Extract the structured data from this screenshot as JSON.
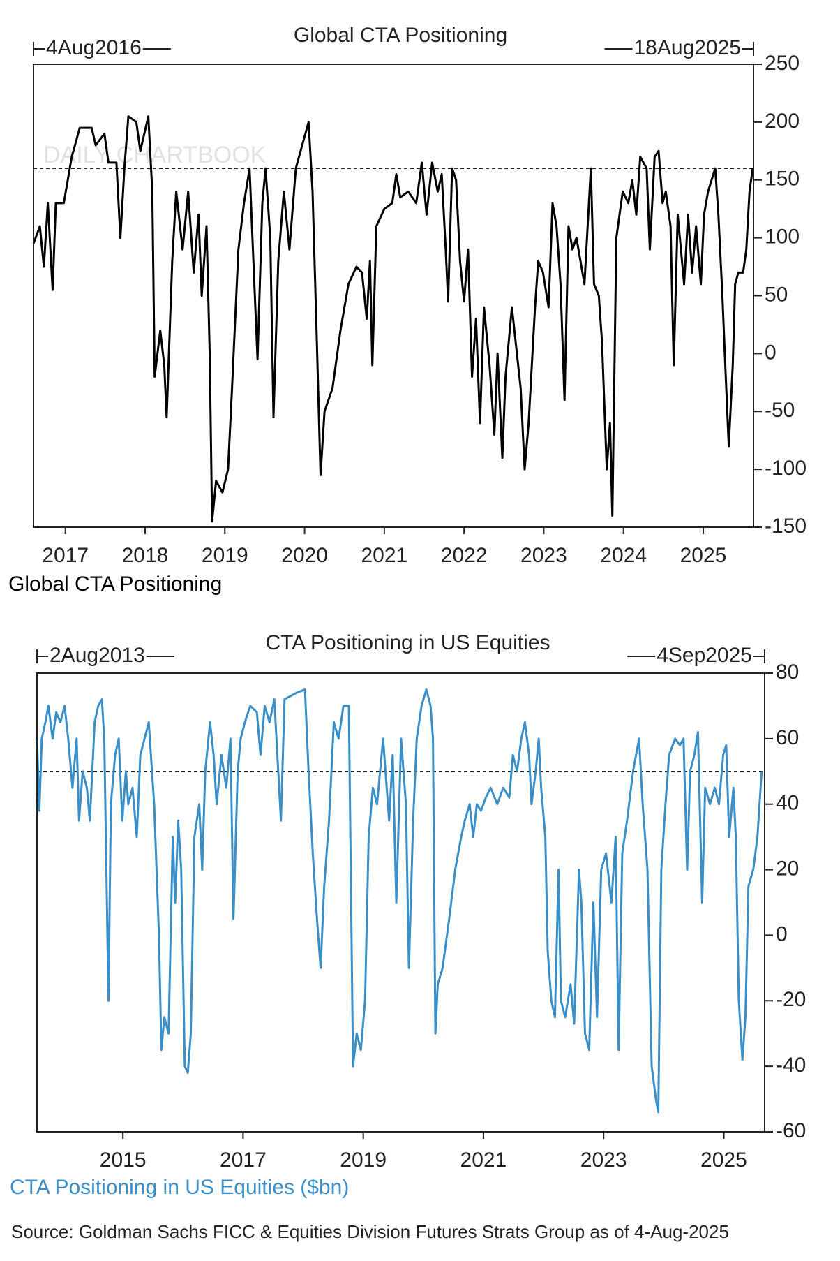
{
  "chart_data": [
    {
      "type": "line",
      "title": "Global CTA Positioning",
      "start_label": "4Aug2016",
      "end_label": "18Aug2025",
      "watermark": "DAILY CHARTBOOK",
      "xlim": [
        2016.6,
        2025.63
      ],
      "xticks": [
        2017,
        2018,
        2019,
        2020,
        2021,
        2022,
        2023,
        2024,
        2025
      ],
      "ylim": [
        -150,
        250
      ],
      "yticks": [
        -150,
        -100,
        -50,
        0,
        50,
        100,
        150,
        200,
        250
      ],
      "y_axis_side": "right",
      "reference_line": 160,
      "series": [
        {
          "name": "Global CTA Positioning",
          "color": "#000000",
          "x": [
            2016.6,
            2016.68,
            2016.73,
            2016.78,
            2016.84,
            2016.88,
            2016.98,
            2017.08,
            2017.18,
            2017.33,
            2017.38,
            2017.49,
            2017.54,
            2017.64,
            2017.69,
            2017.74,
            2017.79,
            2017.89,
            2017.94,
            2018.04,
            2018.09,
            2018.12,
            2018.19,
            2018.24,
            2018.27,
            2018.34,
            2018.39,
            2018.47,
            2018.54,
            2018.61,
            2018.67,
            2018.71,
            2018.77,
            2018.81,
            2018.84,
            2018.89,
            2018.97,
            2019.04,
            2019.09,
            2019.17,
            2019.24,
            2019.31,
            2019.37,
            2019.41,
            2019.47,
            2019.51,
            2019.57,
            2019.61,
            2019.67,
            2019.74,
            2019.81,
            2019.89,
            2019.97,
            2020.05,
            2020.1,
            2020.15,
            2020.2,
            2020.25,
            2020.35,
            2020.45,
            2020.55,
            2020.65,
            2020.72,
            2020.78,
            2020.82,
            2020.85,
            2020.9,
            2021.0,
            2021.1,
            2021.15,
            2021.2,
            2021.3,
            2021.4,
            2021.47,
            2021.53,
            2021.6,
            2021.67,
            2021.72,
            2021.77,
            2021.8,
            2021.85,
            2021.9,
            2021.95,
            2022.0,
            2022.05,
            2022.1,
            2022.15,
            2022.2,
            2022.25,
            2022.32,
            2022.38,
            2022.42,
            2022.48,
            2022.52,
            2022.6,
            2022.71,
            2022.76,
            2022.81,
            2022.89,
            2022.93,
            2022.99,
            2023.06,
            2023.11,
            2023.16,
            2023.21,
            2023.26,
            2023.31,
            2023.36,
            2023.41,
            2023.51,
            2023.59,
            2023.63,
            2023.69,
            2023.73,
            2023.79,
            2023.83,
            2023.86,
            2023.91,
            2023.99,
            2024.06,
            2024.11,
            2024.16,
            2024.21,
            2024.29,
            2024.33,
            2024.39,
            2024.44,
            2024.49,
            2024.53,
            2024.59,
            2024.63,
            2024.68,
            2024.76,
            2024.81,
            2024.86,
            2024.91,
            2024.97,
            2025.01,
            2025.06,
            2025.15,
            2025.19,
            2025.24,
            2025.27,
            2025.32,
            2025.37,
            2025.4,
            2025.44,
            2025.5,
            2025.54,
            2025.58,
            2025.62
          ],
          "values": [
            95,
            110,
            75,
            130,
            55,
            130,
            130,
            170,
            195,
            195,
            180,
            190,
            165,
            165,
            100,
            160,
            205,
            200,
            175,
            205,
            140,
            -20,
            20,
            -10,
            -55,
            80,
            140,
            90,
            140,
            70,
            120,
            50,
            110,
            0,
            -145,
            -110,
            -120,
            -100,
            -30,
            90,
            130,
            160,
            60,
            -5,
            130,
            160,
            100,
            -55,
            80,
            140,
            90,
            160,
            180,
            200,
            140,
            20,
            -105,
            -50,
            -30,
            20,
            60,
            75,
            70,
            30,
            80,
            -10,
            110,
            125,
            130,
            155,
            135,
            140,
            130,
            165,
            120,
            165,
            140,
            155,
            90,
            45,
            160,
            150,
            80,
            45,
            90,
            -20,
            30,
            -60,
            40,
            -10,
            -70,
            0,
            -90,
            -20,
            40,
            -30,
            -100,
            -60,
            40,
            80,
            70,
            40,
            130,
            110,
            60,
            -40,
            110,
            90,
            100,
            60,
            160,
            60,
            50,
            10,
            -100,
            -60,
            -140,
            100,
            140,
            130,
            150,
            120,
            170,
            160,
            90,
            170,
            175,
            130,
            140,
            110,
            -10,
            120,
            60,
            120,
            70,
            110,
            60,
            120,
            140,
            160,
            120,
            50,
            0,
            -80,
            -10,
            60,
            70,
            70,
            90,
            140,
            160
          ]
        }
      ]
    },
    {
      "type": "line",
      "title": "CTA Positioning in US Equities",
      "start_label": "2Aug2013",
      "end_label": "4Sep2025",
      "xlim": [
        2013.57,
        2025.68
      ],
      "xticks": [
        2015,
        2017,
        2019,
        2021,
        2023,
        2025
      ],
      "ylim": [
        -60,
        80
      ],
      "yticks": [
        -60,
        -40,
        -20,
        0,
        20,
        40,
        60,
        80
      ],
      "y_axis_side": "right",
      "reference_line": 50,
      "series": [
        {
          "name": "CTA Positioning in US Equities ($bn)",
          "color": "#3a8fc8",
          "x": [
            2013.57,
            2013.61,
            2013.65,
            2013.71,
            2013.76,
            2013.83,
            2013.89,
            2013.96,
            2014.03,
            2014.09,
            2014.16,
            2014.23,
            2014.27,
            2014.33,
            2014.4,
            2014.45,
            2014.53,
            2014.59,
            2014.65,
            2014.69,
            2014.76,
            2014.8,
            2014.87,
            2014.93,
            2014.99,
            2015.05,
            2015.09,
            2015.16,
            2015.23,
            2015.29,
            2015.36,
            2015.43,
            2015.52,
            2015.6,
            2015.64,
            2015.69,
            2015.76,
            2015.83,
            2015.87,
            2015.92,
            2015.97,
            2016.03,
            2016.08,
            2016.13,
            2016.19,
            2016.27,
            2016.32,
            2016.37,
            2016.45,
            2016.51,
            2016.56,
            2016.64,
            2016.72,
            2016.79,
            2016.84,
            2016.91,
            2016.96,
            2017.03,
            2017.12,
            2017.23,
            2017.29,
            2017.36,
            2017.44,
            2017.52,
            2017.63,
            2017.69,
            2017.79,
            2017.89,
            2018.03,
            2018.09,
            2018.16,
            2018.23,
            2018.29,
            2018.35,
            2018.43,
            2018.51,
            2018.59,
            2018.67,
            2018.76,
            2018.83,
            2018.89,
            2018.96,
            2019.03,
            2019.09,
            2019.16,
            2019.23,
            2019.33,
            2019.43,
            2019.49,
            2019.55,
            2019.63,
            2019.71,
            2019.76,
            2019.83,
            2019.89,
            2019.97,
            2020.05,
            2020.12,
            2020.16,
            2020.2,
            2020.24,
            2020.32,
            2020.43,
            2020.53,
            2020.63,
            2020.69,
            2020.77,
            2020.83,
            2020.89,
            2020.96,
            2021.04,
            2021.12,
            2021.23,
            2021.33,
            2021.43,
            2021.49,
            2021.56,
            2021.63,
            2021.69,
            2021.76,
            2021.8,
            2021.87,
            2021.92,
            2021.96,
            2022.03,
            2022.07,
            2022.13,
            2022.19,
            2022.25,
            2022.29,
            2022.36,
            2022.45,
            2022.51,
            2022.59,
            2022.63,
            2022.69,
            2022.76,
            2022.83,
            2022.89,
            2022.96,
            2023.04,
            2023.13,
            2023.2,
            2023.25,
            2023.31,
            2023.39,
            2023.49,
            2023.59,
            2023.65,
            2023.73,
            2023.8,
            2023.87,
            2023.91,
            2023.96,
            2024.03,
            2024.09,
            2024.19,
            2024.27,
            2024.33,
            2024.39,
            2024.44,
            2024.51,
            2024.57,
            2024.64,
            2024.69,
            2024.77,
            2024.85,
            2024.92,
            2024.99,
            2025.04,
            2025.09,
            2025.16,
            2025.2,
            2025.25,
            2025.31,
            2025.36,
            2025.41,
            2025.49,
            2025.56,
            2025.63
          ],
          "values": [
            60,
            38,
            60,
            65,
            70,
            60,
            68,
            65,
            70,
            60,
            45,
            60,
            35,
            50,
            45,
            35,
            65,
            70,
            72,
            60,
            -20,
            40,
            55,
            60,
            35,
            50,
            40,
            45,
            30,
            55,
            60,
            65,
            40,
            0,
            -35,
            -25,
            -30,
            30,
            10,
            35,
            20,
            -40,
            -42,
            -30,
            30,
            40,
            20,
            50,
            65,
            55,
            40,
            55,
            45,
            60,
            5,
            50,
            60,
            65,
            70,
            68,
            55,
            70,
            65,
            72,
            35,
            72,
            73,
            74,
            75,
            50,
            25,
            5,
            -10,
            15,
            35,
            65,
            60,
            70,
            70,
            -40,
            -30,
            -35,
            -20,
            30,
            45,
            40,
            60,
            35,
            55,
            10,
            60,
            40,
            -10,
            35,
            60,
            70,
            75,
            70,
            60,
            -30,
            -15,
            -10,
            5,
            20,
            30,
            35,
            40,
            30,
            40,
            38,
            42,
            45,
            40,
            45,
            42,
            55,
            50,
            60,
            65,
            55,
            40,
            50,
            60,
            45,
            30,
            -5,
            -20,
            -25,
            20,
            -20,
            -25,
            -15,
            -27,
            20,
            10,
            -30,
            -35,
            10,
            -25,
            20,
            25,
            10,
            30,
            -35,
            25,
            35,
            50,
            60,
            40,
            20,
            -40,
            -50,
            -54,
            20,
            40,
            55,
            60,
            58,
            60,
            20,
            50,
            55,
            62,
            10,
            45,
            40,
            45,
            40,
            55,
            58,
            30,
            45,
            30,
            -20,
            -38,
            -25,
            15,
            20,
            30,
            50
          ]
        }
      ]
    }
  ],
  "source": "Source: Goldman Sachs FICC & Equities Division Futures Strats Group as of 4-Aug-2025"
}
